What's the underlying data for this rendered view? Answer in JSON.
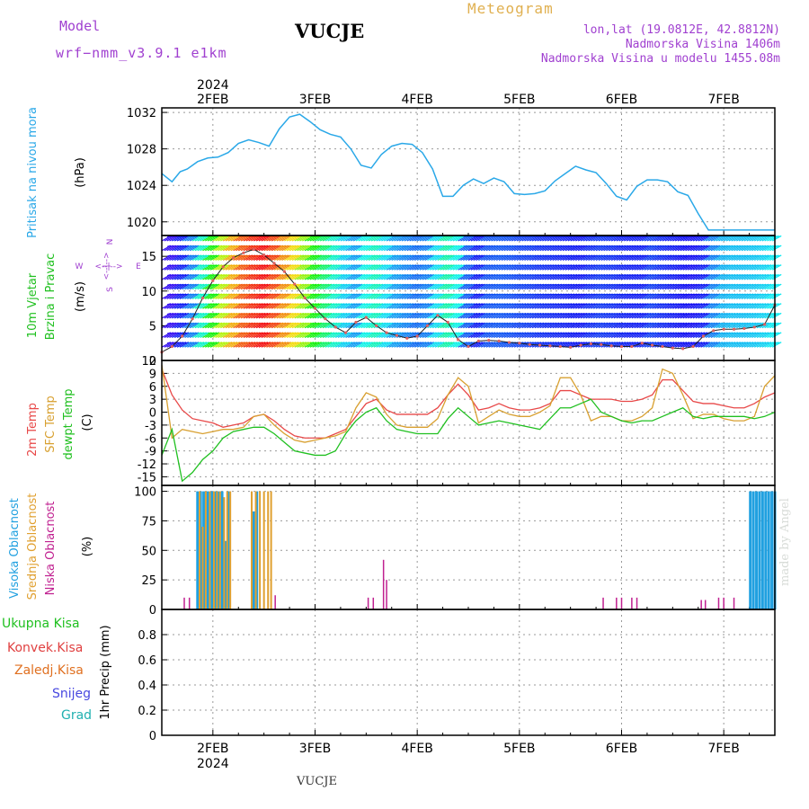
{
  "header": {
    "model_label": "Model",
    "model_name": "wrf−nmm_v3.9.1  e1km",
    "station": "VUCJE",
    "product": "Meteogram",
    "lonlat": "lon,lat (19.0812E, 42.8812N)",
    "elevation": "Nadmorska Visina 1406m",
    "model_elevation": "Nadmorska Visina u modelu 1455.08m"
  },
  "footer": {
    "station": "VUCJE",
    "watermark": "made by Angel"
  },
  "colors": {
    "pressure": "#2aa8e8",
    "t2m": "#e84848",
    "tsfc": "#d8a030",
    "dew": "#20c020",
    "high_cloud": "#20a0e0",
    "mid_cloud": "#e0a030",
    "low_cloud": "#c02090",
    "rain": "#20c020",
    "conv": "#e04040",
    "frz": "#e07020",
    "snow": "#4848e0",
    "grad": "#20b0b0"
  },
  "x_axis": {
    "top_year": "2024",
    "bottom_year": "2024",
    "ticks": [
      "2FEB",
      "3FEB",
      "4FEB",
      "5FEB",
      "6FEB",
      "7FEB"
    ]
  },
  "chart_data": [
    {
      "type": "line",
      "panel": "pressure",
      "ylabel": "Pritisak na nivou mora",
      "unit": "(hPa)",
      "ylim": [
        1018.5,
        1032.5
      ],
      "yticks": [
        1020,
        1024,
        1028,
        1032
      ],
      "x": [
        1.5,
        1.6,
        1.68,
        1.75,
        1.85,
        1.95,
        2.05,
        2.15,
        2.25,
        2.35,
        2.45,
        2.55,
        2.65,
        2.75,
        2.85,
        2.95,
        3.05,
        3.15,
        3.25,
        3.35,
        3.45,
        3.55,
        3.65,
        3.75,
        3.85,
        3.95,
        4.05,
        4.15,
        4.25,
        4.35,
        4.45,
        4.55,
        4.65,
        4.75,
        4.85,
        4.95,
        5.05,
        5.15,
        5.25,
        5.35,
        5.45,
        5.55,
        5.65,
        5.75,
        5.85,
        5.95,
        6.05,
        6.15,
        6.25,
        6.35,
        6.45,
        6.55,
        6.65,
        6.75,
        6.85,
        6.95,
        7.05,
        7.15,
        7.25,
        7.35,
        7.5
      ],
      "series": [
        {
          "values": [
            1025.3,
            1024.4,
            1025.5,
            1025.8,
            1026.6,
            1027.0,
            1027.1,
            1027.6,
            1028.6,
            1029.0,
            1028.7,
            1028.3,
            1030.2,
            1031.5,
            1031.8,
            1031.0,
            1030.1,
            1029.6,
            1029.3,
            1028.0,
            1026.2,
            1025.9,
            1027.4,
            1028.3,
            1028.6,
            1028.5,
            1027.6,
            1025.8,
            1022.8,
            1022.8,
            1024.0,
            1024.7,
            1024.2,
            1024.8,
            1024.4,
            1023.1,
            1023.0,
            1023.1,
            1023.4,
            1024.5,
            1025.3,
            1026.1,
            1025.7,
            1025.4,
            1024.2,
            1022.8,
            1022.4,
            1023.9,
            1024.6,
            1024.6,
            1024.4,
            1023.3,
            1022.9,
            1020.9,
            1019.1,
            1019.1,
            1019.1,
            1019.1,
            1019.1,
            1019.1,
            1019.1
          ]
        }
      ]
    },
    {
      "type": "scatter",
      "panel": "wind",
      "ylabel": "10m Vjetar Brzina i Pravac",
      "unit": "(m/s)",
      "compass": {
        "n": "N",
        "s": "S",
        "e": "E",
        "w": "W"
      },
      "ylim": [
        0,
        18
      ],
      "yticks": [
        0,
        5,
        10,
        15
      ],
      "x": [
        1.5,
        1.6,
        1.7,
        1.8,
        1.9,
        2.0,
        2.1,
        2.2,
        2.3,
        2.4,
        2.5,
        2.6,
        2.7,
        2.8,
        2.9,
        3.0,
        3.1,
        3.2,
        3.3,
        3.4,
        3.5,
        3.6,
        3.7,
        3.8,
        3.9,
        4.0,
        4.1,
        4.2,
        4.3,
        4.4,
        4.5,
        4.6,
        4.7,
        4.8,
        4.9,
        5.0,
        5.1,
        5.2,
        5.3,
        5.4,
        5.5,
        5.6,
        5.7,
        5.8,
        5.9,
        6.0,
        6.1,
        6.2,
        6.3,
        6.4,
        6.5,
        6.6,
        6.7,
        6.8,
        6.9,
        7.0,
        7.1,
        7.2,
        7.3,
        7.4,
        7.5
      ],
      "series": [
        {
          "values": [
            1.2,
            2.0,
            3.5,
            6.0,
            9.0,
            11.5,
            13.5,
            14.8,
            15.5,
            16.0,
            15.2,
            14.0,
            12.8,
            11.0,
            9.0,
            7.5,
            6.0,
            4.8,
            4.0,
            5.5,
            6.2,
            5.0,
            4.0,
            3.6,
            3.2,
            3.5,
            5.0,
            6.5,
            5.5,
            3.0,
            2.0,
            2.8,
            2.9,
            2.8,
            2.6,
            2.5,
            2.3,
            2.2,
            2.1,
            2.0,
            1.9,
            2.2,
            2.4,
            2.3,
            2.1,
            2.0,
            2.0,
            2.5,
            2.2,
            2.0,
            1.8,
            1.7,
            2.0,
            3.5,
            4.3,
            4.5,
            4.5,
            4.6,
            4.8,
            5.2,
            8.0
          ]
        }
      ]
    },
    {
      "type": "line",
      "panel": "temperature",
      "ylabels": [
        "2m Temp",
        "SFC Temp",
        "dewpt Temp"
      ],
      "unit": "(C)",
      "ylim": [
        -17,
        12
      ],
      "yticks": [
        -15,
        -12,
        -9,
        -6,
        -3,
        0,
        3,
        6,
        9,
        12
      ],
      "x": [
        1.5,
        1.6,
        1.7,
        1.8,
        1.9,
        2.0,
        2.1,
        2.2,
        2.3,
        2.4,
        2.5,
        2.6,
        2.7,
        2.8,
        2.9,
        3.0,
        3.1,
        3.2,
        3.3,
        3.4,
        3.5,
        3.6,
        3.7,
        3.8,
        3.9,
        4.0,
        4.1,
        4.2,
        4.3,
        4.4,
        4.5,
        4.6,
        4.7,
        4.8,
        4.9,
        5.0,
        5.1,
        5.2,
        5.3,
        5.4,
        5.5,
        5.6,
        5.7,
        5.8,
        5.9,
        6.0,
        6.1,
        6.2,
        6.3,
        6.4,
        6.5,
        6.6,
        6.7,
        6.8,
        6.9,
        7.0,
        7.1,
        7.2,
        7.3,
        7.4,
        7.5
      ],
      "series": [
        {
          "name": "2m Temp",
          "values": [
            10,
            4,
            0.5,
            -1.5,
            -2,
            -2.5,
            -3.5,
            -3,
            -2.5,
            -1,
            -0.5,
            -2,
            -4,
            -5.5,
            -6,
            -6,
            -6,
            -5,
            -4,
            -1,
            2,
            3,
            0.5,
            -0.5,
            -0.5,
            -0.5,
            -0.5,
            1,
            4,
            6.5,
            4,
            0.5,
            1,
            2,
            1,
            0.5,
            0.5,
            1,
            2,
            5,
            5,
            4,
            3,
            3,
            3,
            2.5,
            2.5,
            3,
            4,
            7.5,
            7.5,
            5,
            2.5,
            2,
            2,
            1.5,
            1,
            1,
            2,
            3.5,
            4.5
          ]
        },
        {
          "name": "SFC Temp",
          "values": [
            11,
            -6,
            -4,
            -4.5,
            -5,
            -4.5,
            -4,
            -4,
            -3.5,
            -1,
            -0.5,
            -3,
            -5,
            -6.5,
            -7,
            -6.5,
            -6,
            -5.5,
            -4.5,
            1,
            4.5,
            3.5,
            -0.5,
            -3,
            -3.5,
            -3.5,
            -3.5,
            -1.5,
            4,
            8,
            6,
            -2.5,
            -1,
            0.5,
            -0.5,
            -1,
            -1,
            0,
            1.5,
            8,
            8,
            4,
            -2,
            -1,
            -1,
            -2,
            -2,
            -1,
            1,
            10,
            9,
            4,
            -1.5,
            -0.5,
            -0.5,
            -1.5,
            -2,
            -2,
            -1,
            6,
            8.5
          ]
        },
        {
          "name": "dewpt Temp",
          "values": [
            -10,
            -4,
            -16,
            -14,
            -11,
            -9,
            -6,
            -4.5,
            -4,
            -3.5,
            -3.5,
            -5,
            -7,
            -9,
            -9.5,
            -10,
            -10,
            -9,
            -5,
            -2,
            0,
            1,
            -2,
            -4,
            -4.5,
            -5,
            -5,
            -5,
            -1.5,
            1,
            -1,
            -3,
            -2.5,
            -2,
            -2.5,
            -3,
            -3.5,
            -4,
            -1.5,
            1,
            1,
            2,
            3,
            0,
            -1,
            -2,
            -2.5,
            -2,
            -2,
            -1,
            0,
            1,
            -1,
            -1.5,
            -1,
            -1,
            -1,
            -1,
            -1.5,
            -1,
            0
          ]
        }
      ]
    },
    {
      "type": "bar",
      "panel": "cloud",
      "ylabels": [
        "Visoka Oblacnost",
        "Srednja Oblacnost",
        "Niska Oblacnost"
      ],
      "unit": "(%)",
      "ylim": [
        0,
        105
      ],
      "yticks": [
        0,
        25,
        50,
        75,
        100
      ],
      "series": [
        {
          "name": "Visoka Oblacnost",
          "x": [
            1.85,
            1.88,
            1.91,
            1.95,
            1.99,
            2.02,
            2.05,
            2.09,
            2.12,
            2.15,
            2.4,
            2.43,
            7.26,
            7.29,
            7.32,
            7.35,
            7.38,
            7.41,
            7.44,
            7.47,
            7.5
          ],
          "values": [
            100,
            100,
            100,
            100,
            100,
            100,
            100,
            100,
            58,
            100,
            83,
            100,
            100,
            100,
            100,
            100,
            100,
            100,
            100,
            100,
            100
          ]
        },
        {
          "name": "Srednja Oblacnost",
          "x": [
            1.87,
            1.9,
            1.93,
            1.97,
            2.01,
            2.04,
            2.07,
            2.11,
            2.14,
            2.17,
            2.38,
            2.42,
            2.46,
            2.5,
            2.54,
            2.57
          ],
          "values": [
            100,
            70,
            100,
            100,
            100,
            100,
            100,
            95,
            100,
            100,
            100,
            100,
            100,
            100,
            100,
            100
          ]
        },
        {
          "name": "Niska Oblacnost",
          "x": [
            1.72,
            1.77,
            2.61,
            3.52,
            3.57,
            3.67,
            3.7,
            5.82,
            5.95,
            6.0,
            6.1,
            6.15,
            6.78,
            6.82,
            6.95,
            7.0,
            7.1
          ],
          "values": [
            10,
            10,
            12,
            10,
            10,
            42,
            25,
            10,
            10,
            10,
            10,
            10,
            8,
            8,
            10,
            10,
            10
          ]
        }
      ]
    },
    {
      "type": "bar",
      "panel": "precip",
      "ylabel": "1hr Precip",
      "unit": "(mm)",
      "legend": [
        "Ukupna Kisa",
        "Konvek.Kisa",
        "Zaledj.Kisa",
        "Snijeg",
        "Grad"
      ],
      "ylim": [
        0,
        1
      ],
      "yticks": [
        0,
        0.2,
        0.4,
        0.6,
        0.8
      ],
      "series": [
        {
          "name": "Ukupna Kisa",
          "x": [],
          "values": []
        }
      ]
    }
  ]
}
